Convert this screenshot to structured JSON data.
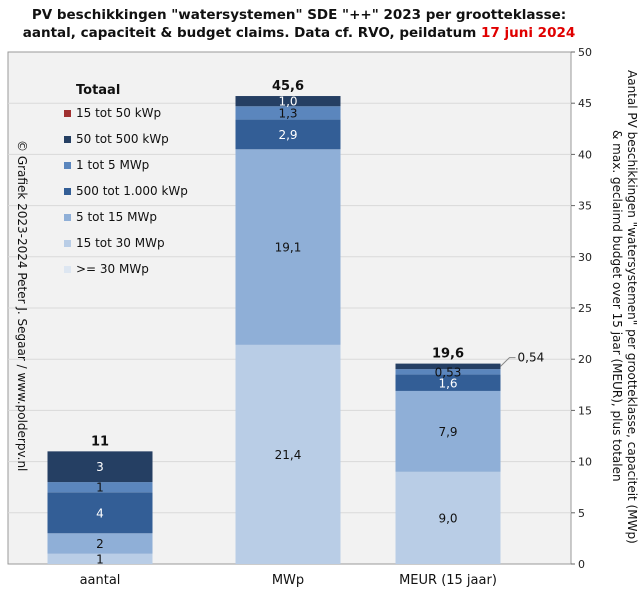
{
  "title": {
    "line1": "PV beschikkingen \"watersystemen\" SDE \"++\" 2023 per grootteklasse:",
    "line2_prefix": "aantal, capaciteit & budget claims. Data cf. RVO, peildatum ",
    "line2_date": "17 juni 2024"
  },
  "copyright": "© Grafiek 2023-2024 Peter J. Segaar / www.polderpv.nl",
  "legend": {
    "title": "Totaal",
    "items": [
      "15 tot 50 kWp",
      "50 tot 500 kWp",
      "1 tot 5 MWp",
      "500 tot 1.000 kWp",
      "5 tot 15 MWp",
      "15 tot 30 MWp",
      ">= 30 MWp"
    ]
  },
  "colors": {
    "15 tot 50 kWp": "#a03030",
    "50 tot 500 kWp": "#253f63",
    "1 tot 5 MWp": "#5b86bd",
    "500 tot 1.000 kWp": "#335e96",
    "5 tot 15 MWp": "#8fafd7",
    "15 tot 30 MWp": "#b9cde6",
    ">= 30 MWp": "#dde6f1",
    "plot_background": "#f2f2f2"
  },
  "chart_data": {
    "type": "bar",
    "stacked": true,
    "categories": [
      "aantal",
      "MWp",
      "MEUR (15 jaar)"
    ],
    "series": [
      {
        "name": "15 tot 30 MWp",
        "values": [
          1,
          21.4,
          9.0
        ],
        "labels": [
          "1",
          "21,4",
          "9,0"
        ]
      },
      {
        "name": "5 tot 15 MWp",
        "values": [
          2,
          19.1,
          7.9
        ],
        "labels": [
          "2",
          "19,1",
          "7,9"
        ]
      },
      {
        "name": "500 tot 1.000 kWp",
        "values": [
          4,
          2.9,
          1.6
        ],
        "labels": [
          "4",
          "2,9",
          "1,6"
        ]
      },
      {
        "name": "1 tot 5 MWp",
        "values": [
          1,
          1.3,
          0.53
        ],
        "labels": [
          "1",
          "1,3",
          "0,53"
        ]
      },
      {
        "name": "50 tot 500 kWp",
        "values": [
          3,
          1.0,
          0.54
        ],
        "labels": [
          "3",
          "1,0",
          "0,54"
        ]
      }
    ],
    "totals": [
      "11",
      "45,6",
      "19,6"
    ],
    "y_axis": {
      "position": "right",
      "label": "Aantal PV beschikkingen \"watersystemen\" per grootteklasse, capaciteit (MWp) & max. geclaimd budget over 15 jaar (MEUR), plus totalen",
      "label_line1": "Aantal PV beschikkingen \"watersystemen\" per grootteklasse, capaciteit (MWp)",
      "label_line2": "& max. geclaimd budget over 15 jaar (MEUR), plus totalen",
      "ylim": [
        0,
        50
      ],
      "ticks": [
        0,
        5,
        10,
        15,
        20,
        25,
        30,
        35,
        40,
        45,
        50
      ]
    },
    "grid": true,
    "legend_position": "top-left"
  }
}
